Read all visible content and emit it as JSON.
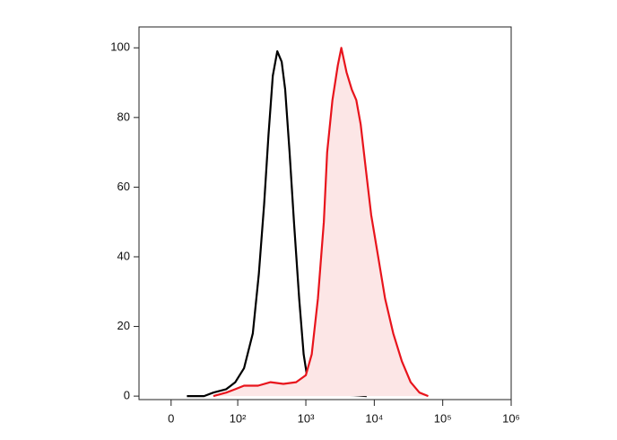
{
  "chart_data": {
    "type": "line",
    "xscale": "biexponential",
    "xlim": [
      -28,
      1000000
    ],
    "xticks": [
      0,
      {
        "value": 100,
        "label": "10²"
      },
      {
        "value": 1000,
        "label": "10³"
      },
      {
        "value": 10000,
        "label": "10⁴"
      },
      {
        "value": 100000,
        "label": "10⁵"
      },
      {
        "value": 1000000,
        "label": "10⁶"
      }
    ],
    "ylim": [
      -1,
      106
    ],
    "yticks": [
      0,
      20,
      40,
      60,
      80,
      100
    ],
    "grid": false,
    "series": [
      {
        "color": "#000000",
        "x": [
          12,
          29,
          42,
          67,
          92,
          124,
          167,
          205,
          245,
          284,
          329,
          382,
          443,
          499,
          578,
          670,
          800,
          928,
          1075,
          1322,
          2045,
          5000,
          7740
        ],
        "values": [
          0,
          0,
          1,
          2,
          4,
          8,
          18,
          35,
          55,
          75,
          92,
          99,
          96,
          88,
          70,
          50,
          28,
          12,
          4,
          1,
          0.5,
          0.3,
          0
        ]
      },
      {
        "color": "#e8141c",
        "fill": "#fce6e6",
        "x": [
          42,
          67,
          92,
          124,
          200,
          305,
          470,
          720,
          1000,
          1220,
          1500,
          1830,
          2045,
          2450,
          2930,
          3300,
          3930,
          4700,
          5460,
          6330,
          7550,
          9020,
          11400,
          14400,
          18900,
          25300,
          34000,
          45700,
          61400
        ],
        "values": [
          0,
          1,
          2,
          3,
          3,
          4,
          3.5,
          4,
          6,
          12,
          28,
          50,
          70,
          85,
          95,
          100,
          93,
          88,
          85,
          78,
          65,
          52,
          40,
          28,
          18,
          10,
          4,
          1,
          0
        ]
      }
    ]
  }
}
